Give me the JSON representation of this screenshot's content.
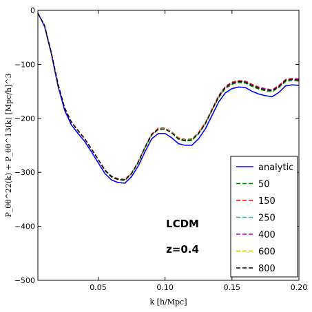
{
  "chart_data": {
    "type": "line",
    "title": "",
    "xlabel": "k [h/Mpc]",
    "ylabel": "P_θθ^22(k) + P_θθ^13(k) [Mpc/h]^3",
    "xlim": [
      0.005,
      0.2
    ],
    "ylim": [
      -500,
      0
    ],
    "xticks": [
      0.05,
      0.1,
      0.15,
      0.2
    ],
    "xtick_labels": [
      "0.05",
      "0.10",
      "0.15",
      "0.20"
    ],
    "yticks": [
      0,
      -100,
      -200,
      -300,
      -400,
      -500
    ],
    "ytick_labels": [
      "0",
      "−100",
      "−200",
      "−300",
      "−400",
      "−500"
    ],
    "grid": false,
    "legend_position": "bottom-right",
    "annotations": [
      "LCDM",
      "z=0.4"
    ],
    "x": [
      0.005,
      0.01,
      0.015,
      0.02,
      0.025,
      0.03,
      0.035,
      0.04,
      0.045,
      0.05,
      0.055,
      0.06,
      0.065,
      0.07,
      0.075,
      0.08,
      0.085,
      0.09,
      0.095,
      0.1,
      0.105,
      0.11,
      0.115,
      0.12,
      0.125,
      0.13,
      0.135,
      0.14,
      0.145,
      0.15,
      0.155,
      0.16,
      0.165,
      0.17,
      0.175,
      0.18,
      0.185,
      0.19,
      0.195,
      0.2
    ],
    "series": [
      {
        "name": "analytic",
        "color": "#0000ff",
        "dash": "solid",
        "values": [
          -5,
          -30,
          -80,
          -140,
          -185,
          -212,
          -228,
          -243,
          -262,
          -282,
          -302,
          -314,
          -319,
          -320,
          -308,
          -288,
          -262,
          -238,
          -228,
          -228,
          -236,
          -247,
          -250,
          -250,
          -238,
          -220,
          -195,
          -170,
          -153,
          -145,
          -142,
          -143,
          -150,
          -155,
          -158,
          -160,
          -152,
          -140,
          -138,
          -139
        ]
      },
      {
        "name": "50",
        "color": "#008000",
        "dash": "dashed",
        "values": [
          -5,
          -28,
          -78,
          -136,
          -181,
          -207,
          -223,
          -238,
          -257,
          -276,
          -297,
          -309,
          -314,
          -315,
          -303,
          -282,
          -255,
          -231,
          -221,
          -220,
          -227,
          -239,
          -242,
          -241,
          -229,
          -211,
          -186,
          -162,
          -145,
          -137,
          -134,
          -135,
          -141,
          -146,
          -149,
          -151,
          -143,
          -132,
          -130,
          -131
        ]
      },
      {
        "name": "150",
        "color": "#ff0000",
        "dash": "dashed",
        "values": [
          -5,
          -28,
          -77,
          -135,
          -180,
          -206,
          -222,
          -237,
          -256,
          -275,
          -295,
          -307,
          -312,
          -313,
          -301,
          -280,
          -253,
          -229,
          -218,
          -218,
          -225,
          -236,
          -239,
          -238,
          -226,
          -208,
          -183,
          -158,
          -141,
          -133,
          -130,
          -131,
          -137,
          -142,
          -145,
          -147,
          -139,
          -128,
          -126,
          -127
        ]
      },
      {
        "name": "250",
        "color": "#00bfbf",
        "dash": "dashed",
        "values": [
          -5,
          -28,
          -78,
          -136,
          -181,
          -207,
          -223,
          -238,
          -257,
          -276,
          -296,
          -308,
          -313,
          -314,
          -302,
          -281,
          -254,
          -230,
          -220,
          -219,
          -226,
          -238,
          -241,
          -240,
          -228,
          -210,
          -185,
          -160,
          -143,
          -135,
          -132,
          -133,
          -139,
          -144,
          -147,
          -149,
          -141,
          -130,
          -128,
          -129
        ]
      },
      {
        "name": "400",
        "color": "#bf00bf",
        "dash": "dashed",
        "values": [
          -5,
          -28,
          -78,
          -136,
          -181,
          -207,
          -223,
          -238,
          -257,
          -276,
          -296,
          -308,
          -313,
          -314,
          -302,
          -281,
          -254,
          -230,
          -220,
          -219,
          -226,
          -237,
          -240,
          -239,
          -227,
          -209,
          -184,
          -159,
          -142,
          -134,
          -131,
          -132,
          -138,
          -143,
          -146,
          -148,
          -140,
          -129,
          -127,
          -128
        ]
      },
      {
        "name": "600",
        "color": "#bfbf00",
        "dash": "dashed",
        "values": [
          -5,
          -28,
          -78,
          -136,
          -181,
          -207,
          -223,
          -238,
          -257,
          -276,
          -296,
          -308,
          -313,
          -314,
          -302,
          -281,
          -254,
          -230,
          -220,
          -219,
          -226,
          -237,
          -240,
          -239,
          -227,
          -209,
          -184,
          -160,
          -143,
          -135,
          -132,
          -133,
          -139,
          -144,
          -147,
          -149,
          -141,
          -130,
          -128,
          -129
        ]
      },
      {
        "name": "800",
        "color": "#000000",
        "dash": "dashed",
        "values": [
          -5,
          -28,
          -78,
          -136,
          -181,
          -207,
          -223,
          -238,
          -257,
          -276,
          -296,
          -308,
          -313,
          -314,
          -302,
          -281,
          -254,
          -230,
          -220,
          -220,
          -227,
          -238,
          -241,
          -240,
          -228,
          -210,
          -185,
          -160,
          -143,
          -135,
          -132,
          -133,
          -139,
          -144,
          -147,
          -149,
          -141,
          -130,
          -128,
          -129
        ]
      }
    ]
  }
}
